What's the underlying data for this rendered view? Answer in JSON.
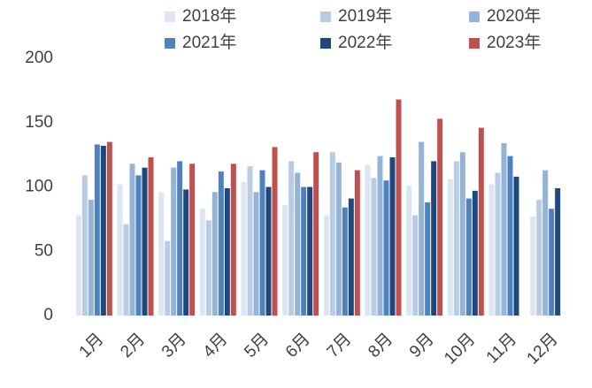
{
  "chart_data": {
    "type": "bar",
    "categories": [
      "1月",
      "2月",
      "3月",
      "4月",
      "5月",
      "6月",
      "7月",
      "8月",
      "9月",
      "10月",
      "11月",
      "12月"
    ],
    "series": [
      {
        "name": "2018年",
        "color": "#dce6f2",
        "values": [
          78,
          102,
          96,
          83,
          104,
          86,
          78,
          117,
          101,
          106,
          102,
          77
        ]
      },
      {
        "name": "2019年",
        "color": "#b8cce4",
        "values": [
          109,
          71,
          58,
          74,
          116,
          120,
          127,
          107,
          78,
          120,
          111,
          90
        ]
      },
      {
        "name": "2020年",
        "color": "#95b3d7",
        "values": [
          90,
          118,
          115,
          96,
          96,
          111,
          119,
          124,
          135,
          127,
          134,
          113
        ]
      },
      {
        "name": "2021年",
        "color": "#4f81bd",
        "values": [
          133,
          109,
          120,
          112,
          113,
          100,
          84,
          105,
          88,
          91,
          124,
          83
        ]
      },
      {
        "name": "2022年",
        "color": "#1f497d",
        "values": [
          132,
          115,
          98,
          99,
          100,
          100,
          91,
          123,
          120,
          97,
          108,
          99
        ]
      },
      {
        "name": "2023年",
        "color": "#c0504d",
        "values": [
          135,
          123,
          118,
          118,
          131,
          127,
          113,
          168,
          153,
          146,
          null,
          null
        ]
      }
    ],
    "ylim": [
      0,
      200
    ],
    "yticks": [
      0,
      50,
      100,
      150,
      200
    ],
    "grid": false
  }
}
